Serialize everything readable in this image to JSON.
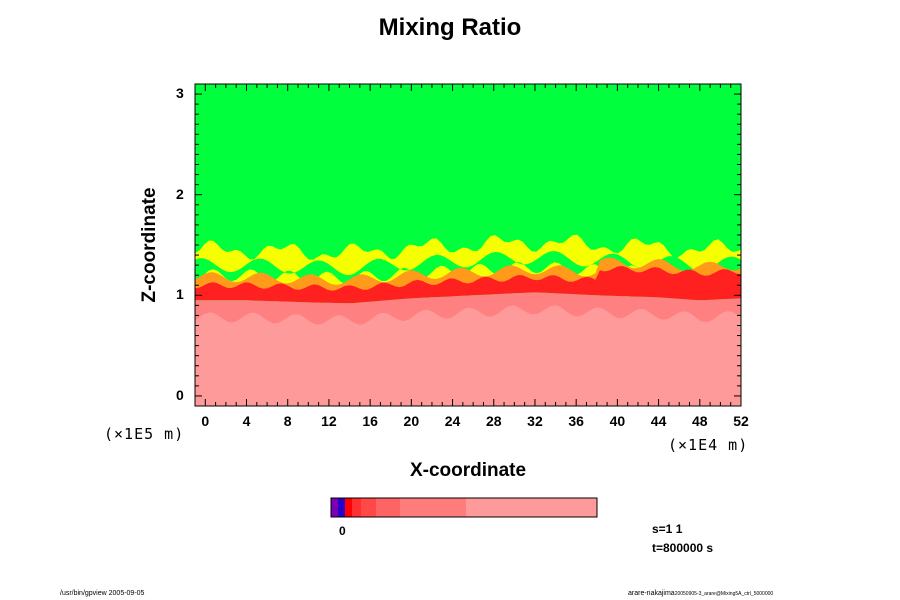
{
  "chart_data": {
    "type": "heatmap",
    "title": "Mixing Ratio",
    "xlabel": "X-coordinate",
    "ylabel": "Z-coordinate",
    "x_unit": "(×1E4 m)",
    "y_unit": "(×1E5 m)",
    "xlim": [
      -1,
      52
    ],
    "ylim": [
      -0.1,
      3.1
    ],
    "x_ticks": [
      0,
      4,
      8,
      12,
      16,
      20,
      24,
      28,
      32,
      36,
      40,
      44,
      48,
      52
    ],
    "y_ticks": [
      0,
      1,
      2,
      3
    ],
    "field_description": "pink layer z<~1, sharp red transition near z=1, yellow/orange mixing zone ~1.1–1.5, green above",
    "interface_height": [
      [
        -1,
        1.0
      ],
      [
        4,
        1.0
      ],
      [
        10,
        0.98
      ],
      [
        14,
        0.97
      ],
      [
        20,
        1.02
      ],
      [
        26,
        1.05
      ],
      [
        32,
        1.08
      ],
      [
        38,
        1.05
      ],
      [
        44,
        1.03
      ],
      [
        48,
        1.0
      ],
      [
        52,
        1.02
      ]
    ],
    "colorbar": {
      "min_label": "0",
      "colors": [
        "#7a00b5",
        "#2a00c8",
        "#ff0000",
        "#ff3030",
        "#ff4848",
        "#ff6464",
        "#ff7c7c",
        "#ff9a9a"
      ]
    },
    "colors": {
      "upper": "#00ff3c",
      "yellow": "#f5ff00",
      "orange": "#ff9a1a",
      "red": "#ff2020",
      "lower": "#ff9a9a",
      "lower_dark": "#ff8080"
    }
  },
  "info": {
    "s_label": "s=1 1",
    "t_label": "t=800000 s"
  },
  "footer": {
    "left": "/usr/bin/gpview 2005-09-05",
    "right_main": "arare-nakajima",
    "right_small": "20050905-3_arare@Mixing5A_ctrl_5000000"
  }
}
